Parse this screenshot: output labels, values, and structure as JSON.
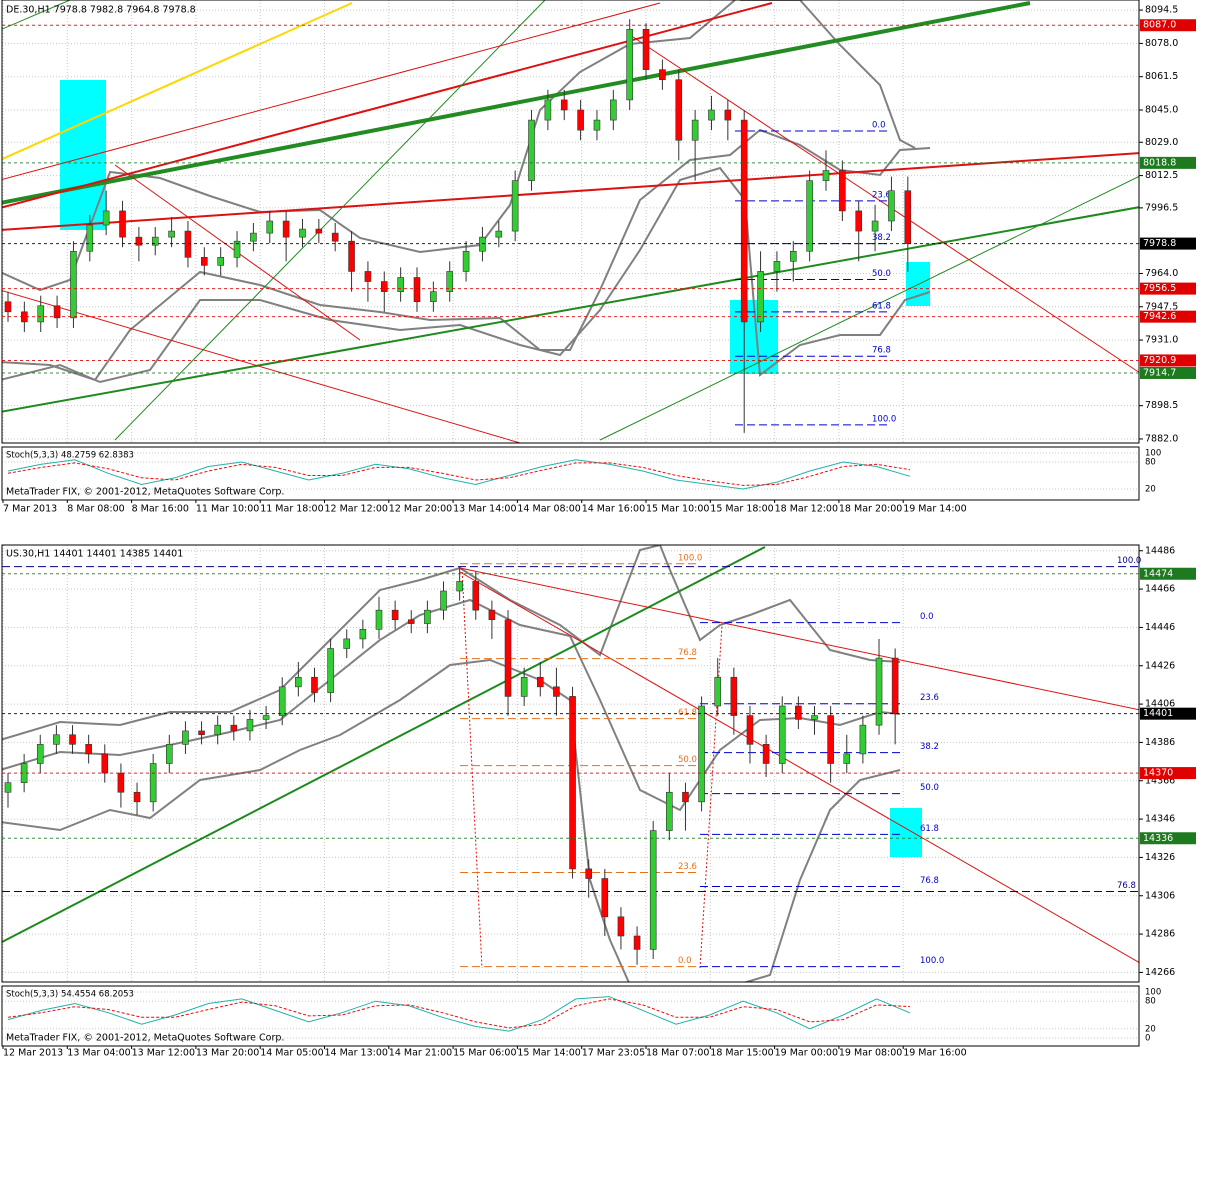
{
  "chart_data": [
    {
      "type": "candlestick",
      "title": "DE.30,H1  7978.8 7982.8 7964.8 7978.8",
      "watermark": "MetaTrader FIX, © 2001-2012, MetaQuotes Software Corp.",
      "categories": [
        "7 Mar 2013",
        "8 Mar 08:00",
        "8 Mar 16:00",
        "11 Mar 10:00",
        "11 Mar 18:00",
        "12 Mar 12:00",
        "12 Mar 20:00",
        "13 Mar 14:00",
        "14 Mar 08:00",
        "14 Mar 16:00",
        "15 Mar 10:00",
        "15 Mar 18:00",
        "18 Mar 12:00",
        "18 Mar 20:00",
        "19 Mar 14:00"
      ],
      "open": [
        7950,
        7945,
        7940,
        7948,
        7942,
        7975,
        7988,
        7995,
        7982,
        7978,
        7982,
        7985,
        7972,
        7968,
        7972,
        7980,
        7984,
        7990,
        7982,
        7986,
        7984,
        7980,
        7965,
        7960,
        7955,
        7962,
        7950,
        7955,
        7965,
        7975,
        7982,
        7985,
        8010,
        8040,
        8050,
        8045,
        8035,
        8040,
        8050,
        8085,
        8065,
        8060,
        8030,
        8040,
        8045,
        8040,
        7940,
        7965,
        7970,
        7975,
        8010,
        8015,
        7995,
        7985,
        7990,
        8005
      ],
      "high": [
        7955,
        7950,
        7953,
        7953,
        7980,
        7993,
        8005,
        8000,
        7987,
        7987,
        7992,
        7990,
        7977,
        7977,
        7985,
        7989,
        7995,
        7995,
        7991,
        7991,
        7989,
        7985,
        7970,
        7965,
        7967,
        7967,
        7960,
        7970,
        7980,
        7987,
        7990,
        8015,
        8045,
        8055,
        8055,
        8050,
        8045,
        8055,
        8090,
        8088,
        8070,
        8065,
        8045,
        8052,
        8050,
        8045,
        7975,
        7975,
        7980,
        8015,
        8025,
        8020,
        8000,
        7998,
        8012,
        8012
      ],
      "low": [
        7940,
        7935,
        7935,
        7937,
        7937,
        7970,
        7983,
        7977,
        7970,
        7973,
        7977,
        7967,
        7963,
        7963,
        7967,
        7975,
        7979,
        7970,
        7977,
        7979,
        7975,
        7955,
        7950,
        7945,
        7950,
        7945,
        7945,
        7950,
        7960,
        7970,
        7977,
        7980,
        8005,
        8035,
        8040,
        8030,
        8030,
        8035,
        8045,
        8060,
        8055,
        8020,
        8010,
        8035,
        8030,
        7885,
        7935,
        7955,
        7960,
        7970,
        8005,
        7990,
        7970,
        7975,
        7985,
        7964.8
      ],
      "close": [
        7945,
        7940,
        7948,
        7942,
        7975,
        7988,
        7995,
        7982,
        7978,
        7982,
        7985,
        7972,
        7968,
        7972,
        7980,
        7984,
        7990,
        7982,
        7986,
        7984,
        7980,
        7965,
        7960,
        7955,
        7962,
        7950,
        7955,
        7965,
        7975,
        7982,
        7985,
        8010,
        8040,
        8050,
        8045,
        8035,
        8040,
        8050,
        8085,
        8065,
        8060,
        8030,
        8040,
        8045,
        8040,
        7940,
        7965,
        7970,
        7975,
        8010,
        8015,
        7995,
        7985,
        7990,
        8005,
        7978.8
      ],
      "up_color": "#32cd32",
      "down_color": "#ff0000",
      "ylim": [
        7880,
        8099.5
      ],
      "yticks": [
        8094.5,
        {
          "value": 8078,
          "label": "8078.0"
        },
        8061.5,
        {
          "value": 8045,
          "label": "8045.0"
        },
        {
          "value": 8029,
          "label": "8029.0"
        },
        8012.5,
        7996.5,
        {
          "value": 7964,
          "label": "7964.0"
        },
        7947.5,
        {
          "value": 7931,
          "label": "7931.0"
        },
        7898.5,
        {
          "value": 7882,
          "label": "7882.0"
        }
      ],
      "grid": true,
      "price_labels": {
        "values": [
          8087,
          8018.8,
          7978.8,
          7956.5,
          7942.6,
          7920.9,
          7914.7
        ],
        "value_labels": [
          "8087.0",
          "8018.8",
          "7978.8",
          "7956.5",
          "7942.6",
          "7920.9",
          "7914.7"
        ],
        "colors": [
          "#e00000",
          "#1e7a1e",
          "#000000",
          "#e00000",
          "#e00000",
          "#e00000",
          "#1e7a1e"
        ]
      },
      "fibonacci": [
        {
          "color": "#0000cd",
          "prices": [
            8034.6,
            8000,
            7978.8,
            7961,
            7945,
            7923,
            7889
          ],
          "labels": [
            "0.0",
            "23.6",
            "38.2",
            "50.0",
            "61.8",
            "76.8",
            "100.0"
          ]
        }
      ],
      "indicator": {
        "title": "Stoch(5,3,3) 48.2759 62.8383",
        "ylim": [
          0,
          100
        ],
        "yticks": [
          100,
          80,
          20
        ],
        "series": [
          {
            "color": "#20b2aa",
            "values": [
              60,
              75,
              85,
              55,
              30,
              45,
              70,
              80,
              60,
              40,
              55,
              75,
              65,
              45,
              30,
              50,
              70,
              85,
              75,
              60,
              40,
              30,
              20,
              35,
              60,
              80,
              70,
              48.3
            ]
          },
          {
            "color": "#ff0000",
            "values": [
              55,
              68,
              78,
              65,
              45,
              40,
              60,
              75,
              68,
              50,
              50,
              68,
              68,
              55,
              40,
              45,
              62,
              78,
              78,
              68,
              50,
              38,
              28,
              30,
              48,
              70,
              75,
              62.8
            ]
          }
        ]
      }
    },
    {
      "type": "candlestick",
      "title": "US.30,H1  14401 14401 14385 14401",
      "watermark": "MetaTrader FIX, © 2001-2012, MetaQuotes Software Corp.",
      "categories": [
        "12 Mar 2013",
        "13 Mar 04:00",
        "13 Mar 12:00",
        "13 Mar 20:00",
        "14 Mar 05:00",
        "14 Mar 13:00",
        "14 Mar 21:00",
        "15 Mar 06:00",
        "15 Mar 14:00",
        "17 Mar 23:05",
        "18 Mar 07:00",
        "18 Mar 15:00",
        "19 Mar 00:00",
        "19 Mar 08:00",
        "19 Mar 16:00"
      ],
      "open": [
        14360,
        14365,
        14375,
        14385,
        14390,
        14385,
        14380,
        14370,
        14360,
        14355,
        14375,
        14385,
        14392,
        14390,
        14395,
        14392,
        14398,
        14400,
        14415,
        14420,
        14412,
        14435,
        14440,
        14445,
        14455,
        14450,
        14448,
        14455,
        14465,
        14470,
        14455,
        14450,
        14410,
        14420,
        14415,
        14410,
        14320,
        14315,
        14295,
        14285,
        14278,
        14340,
        14360,
        14355,
        14405,
        14420,
        14400,
        14385,
        14375,
        14405,
        14398,
        14400,
        14375,
        14380,
        14395,
        14430
      ],
      "high": [
        14370,
        14380,
        14390,
        14395,
        14395,
        14390,
        14385,
        14375,
        14365,
        14380,
        14390,
        14397,
        14397,
        14400,
        14400,
        14403,
        14405,
        14420,
        14428,
        14425,
        14440,
        14445,
        14450,
        14462,
        14460,
        14455,
        14460,
        14470,
        14478,
        14475,
        14460,
        14455,
        14425,
        14428,
        14425,
        14415,
        14325,
        14320,
        14300,
        14290,
        14345,
        14370,
        14365,
        14410,
        14430,
        14425,
        14405,
        14390,
        14410,
        14410,
        14405,
        14405,
        14390,
        14400,
        14440,
        14435
      ],
      "low": [
        14352,
        14360,
        14370,
        14380,
        14380,
        14375,
        14365,
        14352,
        14348,
        14350,
        14370,
        14380,
        14385,
        14385,
        14387,
        14387,
        14393,
        14395,
        14410,
        14407,
        14407,
        14430,
        14435,
        14440,
        14445,
        14443,
        14443,
        14450,
        14460,
        14450,
        14440,
        14400,
        14405,
        14410,
        14400,
        14315,
        14305,
        14285,
        14278,
        14270,
        14273,
        14335,
        14340,
        14350,
        14400,
        14390,
        14375,
        14368,
        14370,
        14393,
        14390,
        14365,
        14370,
        14375,
        14390,
        14385
      ],
      "close": [
        14365,
        14375,
        14385,
        14390,
        14385,
        14380,
        14370,
        14360,
        14355,
        14375,
        14385,
        14392,
        14390,
        14395,
        14392,
        14398,
        14400,
        14415,
        14420,
        14412,
        14435,
        14440,
        14445,
        14455,
        14450,
        14448,
        14455,
        14465,
        14470,
        14455,
        14450,
        14410,
        14420,
        14415,
        14410,
        14320,
        14315,
        14295,
        14285,
        14278,
        14340,
        14360,
        14355,
        14405,
        14420,
        14400,
        14385,
        14375,
        14405,
        14398,
        14400,
        14375,
        14380,
        14395,
        14430,
        14401
      ],
      "up_color": "#32cd32",
      "down_color": "#ff0000",
      "ylim": [
        14261,
        14489
      ],
      "yticks": [
        14486,
        14466,
        14446,
        14426,
        14406,
        14386,
        14366,
        14346,
        14326,
        14306,
        14286,
        14266
      ],
      "grid": true,
      "price_labels": {
        "values": [
          14474,
          14401,
          14370,
          14336
        ],
        "value_labels": [
          "14474",
          "14401",
          "14370",
          "14336"
        ],
        "colors": [
          "#1e7a1e",
          "#000000",
          "#e00000",
          "#1e7a1e"
        ]
      },
      "fibonacci": [
        {
          "color": "#0000cd",
          "prices": [
            14448.5,
            14406.2,
            14380.7,
            14359.3,
            14338,
            14310.8,
            14269
          ],
          "labels": [
            "0.0",
            "23.6",
            "38.2",
            "50.0",
            "61.8",
            "76.8",
            "100.0"
          ]
        },
        {
          "color": "#e8701a",
          "prices": [
            14479.2,
            14429.7,
            14398.4,
            14373.9,
            14318.1,
            14269
          ],
          "labels": [
            "100.0",
            "76.8",
            "61.8",
            "50.0",
            "23.6",
            "0.0"
          ]
        },
        {
          "color": "#00008b",
          "prices": [
            14477.7,
            14308.2
          ],
          "labels": [
            "100.0",
            "76.8"
          ]
        }
      ],
      "indicator": {
        "title": "Stoch(5,3,3) 54.4554 68.2053",
        "ylim": [
          0,
          100
        ],
        "yticks": [
          100,
          80,
          20,
          0
        ],
        "series": [
          {
            "color": "#20b2aa",
            "values": [
              40,
              60,
              75,
              55,
              30,
              50,
              75,
              85,
              60,
              35,
              55,
              80,
              70,
              45,
              25,
              15,
              40,
              85,
              90,
              60,
              30,
              50,
              80,
              55,
              20,
              50,
              85,
              54.5
            ]
          },
          {
            "color": "#ff0000",
            "values": [
              45,
              55,
              68,
              62,
              45,
              45,
              62,
              78,
              70,
              48,
              50,
              70,
              72,
              55,
              35,
              22,
              30,
              70,
              85,
              72,
              45,
              45,
              68,
              62,
              35,
              40,
              72,
              68.2
            ]
          }
        ]
      }
    }
  ]
}
